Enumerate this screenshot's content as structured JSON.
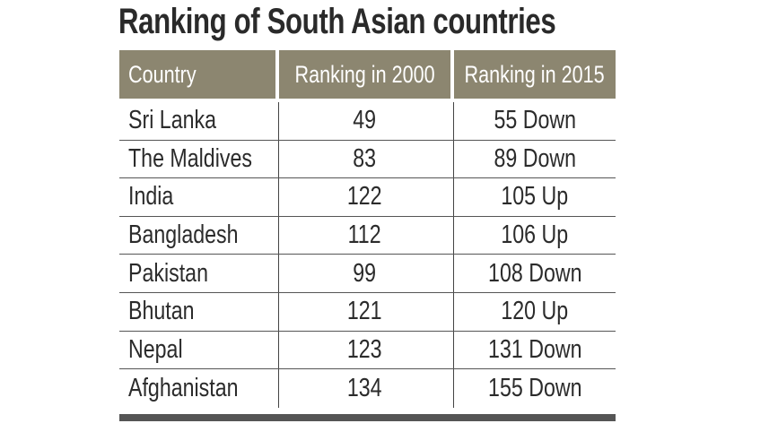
{
  "title": "Ranking of South Asian countries",
  "colors": {
    "header_bg": "#8c8670",
    "header_text": "#ffffff",
    "rule": "#555555"
  },
  "chart_data": {
    "type": "table",
    "title": "Ranking of South Asian countries",
    "columns": [
      "Country",
      "Ranking in 2000",
      "Ranking in 2015"
    ],
    "rows": [
      [
        "Sri Lanka",
        "49",
        "55 Down"
      ],
      [
        "The Maldives",
        "83",
        "89 Down"
      ],
      [
        "India",
        "122",
        "105 Up"
      ],
      [
        "Bangladesh",
        "112",
        "106 Up"
      ],
      [
        "Pakistan",
        "99",
        "108 Down"
      ],
      [
        "Bhutan",
        "121",
        "120 Up"
      ],
      [
        "Nepal",
        "123",
        "131 Down"
      ],
      [
        "Afghanistan",
        "134",
        "155 Down"
      ]
    ]
  }
}
